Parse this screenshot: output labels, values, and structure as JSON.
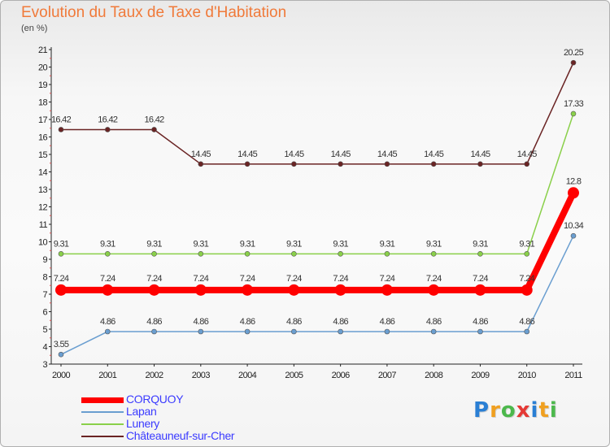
{
  "title": "Evolution du Taux de Taxe d'Habitation",
  "unit_label": "(en %)",
  "logo": {
    "letters": [
      {
        "ch": "P",
        "color": "#2a7fd4"
      },
      {
        "ch": "r",
        "color": "#f0a020"
      },
      {
        "ch": "o",
        "color": "#4cb84c"
      },
      {
        "ch": "x",
        "color": "#e53935"
      },
      {
        "ch": "i",
        "color": "#2a7fd4"
      },
      {
        "ch": "t",
        "color": "#f0a020"
      },
      {
        "ch": "i",
        "color": "#4cb84c"
      }
    ]
  },
  "chart_data": {
    "type": "line",
    "title": "Evolution du Taux de Taxe d'Habitation",
    "ylabel": "(en %)",
    "xlabel": "",
    "x": [
      "2000",
      "2001",
      "2002",
      "2003",
      "2004",
      "2005",
      "2006",
      "2007",
      "2008",
      "2009",
      "2010",
      "2011"
    ],
    "ylim": [
      3,
      21
    ],
    "yticks": [
      3,
      4,
      5,
      6,
      7,
      8,
      9,
      10,
      11,
      12,
      13,
      14,
      15,
      16,
      17,
      18,
      19,
      20,
      21
    ],
    "grid": false,
    "legend_position": "bottom-left",
    "series": [
      {
        "name": "CORQUOY",
        "color": "#ff0000",
        "legend_color": "#3b3bff",
        "width": 8,
        "marker": 7,
        "values": [
          7.24,
          7.24,
          7.24,
          7.24,
          7.24,
          7.24,
          7.24,
          7.24,
          7.24,
          7.24,
          7.24,
          12.8
        ],
        "labels": [
          "7.24",
          "7.24",
          "7.24",
          "7.24",
          "7.24",
          "7.24",
          "7.24",
          "7.24",
          "7.24",
          "7.24",
          "7.24",
          "12.8"
        ]
      },
      {
        "name": "Lapan",
        "color": "#6a9ed0",
        "legend_color": "#3b3bff",
        "width": 1.5,
        "marker": 3,
        "values": [
          3.55,
          4.86,
          4.86,
          4.86,
          4.86,
          4.86,
          4.86,
          4.86,
          4.86,
          4.86,
          4.86,
          10.34
        ],
        "labels": [
          "3.55",
          "4.86",
          "4.86",
          "4.86",
          "4.86",
          "4.86",
          "4.86",
          "4.86",
          "4.86",
          "4.86",
          "4.86",
          "10.34"
        ]
      },
      {
        "name": "Lunery",
        "color": "#8ad04a",
        "legend_color": "#3b3bff",
        "width": 1.5,
        "marker": 3,
        "values": [
          9.31,
          9.31,
          9.31,
          9.31,
          9.31,
          9.31,
          9.31,
          9.31,
          9.31,
          9.31,
          9.31,
          17.33
        ],
        "labels": [
          "9.31",
          "9.31",
          "9.31",
          "9.31",
          "9.31",
          "9.31",
          "9.31",
          "9.31",
          "9.31",
          "9.31",
          "9.31",
          "17.33"
        ]
      },
      {
        "name": "Châteauneuf-sur-Cher",
        "color": "#6a2424",
        "legend_color": "#3b3bff",
        "width": 1.5,
        "marker": 3,
        "values": [
          16.42,
          16.42,
          16.42,
          14.45,
          14.45,
          14.45,
          14.45,
          14.45,
          14.45,
          14.45,
          14.45,
          20.25
        ],
        "labels": [
          "16.42",
          "16.42",
          "16.42",
          "14.45",
          "14.45",
          "14.45",
          "14.45",
          "14.45",
          "14.45",
          "14.45",
          "14.45",
          "20.25"
        ]
      }
    ]
  }
}
